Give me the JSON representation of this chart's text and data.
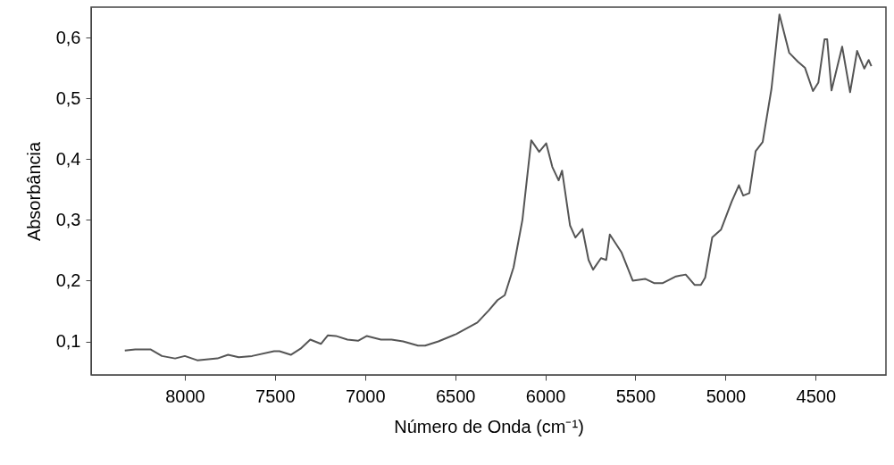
{
  "chart_data": {
    "type": "line",
    "xlabel": "Número de Onda (cm⁻¹)",
    "ylabel": "Absorbância",
    "xlim": [
      8520,
      4110
    ],
    "ylim": [
      0.045,
      0.65
    ],
    "xticks": [
      8000,
      7500,
      7000,
      6500,
      6000,
      5500,
      5000,
      4500
    ],
    "yticks": [
      {
        "value": 0.1,
        "label": "0,1"
      },
      {
        "value": 0.2,
        "label": "0,2"
      },
      {
        "value": 0.3,
        "label": "0,3"
      },
      {
        "value": 0.4,
        "label": "0,4"
      },
      {
        "value": 0.5,
        "label": "0,5"
      },
      {
        "value": 0.6,
        "label": "0,6"
      }
    ],
    "grid": false,
    "series": [
      {
        "color": "#555555",
        "x": [
          8333,
          8275,
          8191,
          8127,
          8054,
          8000,
          7931,
          7819,
          7760,
          7701,
          7627,
          7505,
          7475,
          7412,
          7358,
          7304,
          7245,
          7206,
          7162,
          7098,
          7039,
          6990,
          6912,
          6853,
          6789,
          6706,
          6667,
          6593,
          6495,
          6377,
          6314,
          6265,
          6225,
          6176,
          6127,
          6078,
          6034,
          5995,
          5961,
          5926,
          5907,
          5863,
          5833,
          5794,
          5760,
          5735,
          5691,
          5662,
          5642,
          5578,
          5515,
          5446,
          5397,
          5348,
          5275,
          5221,
          5172,
          5137,
          5113,
          5074,
          5025,
          4966,
          4926,
          4902,
          4868,
          4833,
          4794,
          4745,
          4701,
          4647,
          4598,
          4559,
          4515,
          4485,
          4451,
          4436,
          4412,
          4353,
          4309,
          4270,
          4230,
          4206,
          4191
        ],
        "values": [
          0.085,
          0.087,
          0.087,
          0.076,
          0.072,
          0.076,
          0.069,
          0.072,
          0.078,
          0.074,
          0.076,
          0.084,
          0.084,
          0.078,
          0.088,
          0.103,
          0.096,
          0.11,
          0.109,
          0.103,
          0.101,
          0.109,
          0.103,
          0.103,
          0.1,
          0.093,
          0.093,
          0.1,
          0.112,
          0.131,
          0.151,
          0.168,
          0.176,
          0.222,
          0.3,
          0.431,
          0.412,
          0.426,
          0.387,
          0.365,
          0.381,
          0.291,
          0.271,
          0.285,
          0.234,
          0.218,
          0.237,
          0.234,
          0.276,
          0.247,
          0.2,
          0.203,
          0.196,
          0.196,
          0.207,
          0.21,
          0.193,
          0.193,
          0.205,
          0.271,
          0.284,
          0.33,
          0.357,
          0.34,
          0.344,
          0.413,
          0.428,
          0.516,
          0.638,
          0.575,
          0.56,
          0.55,
          0.512,
          0.526,
          0.597,
          0.597,
          0.513,
          0.585,
          0.51,
          0.578,
          0.549,
          0.563,
          0.553
        ]
      }
    ]
  }
}
